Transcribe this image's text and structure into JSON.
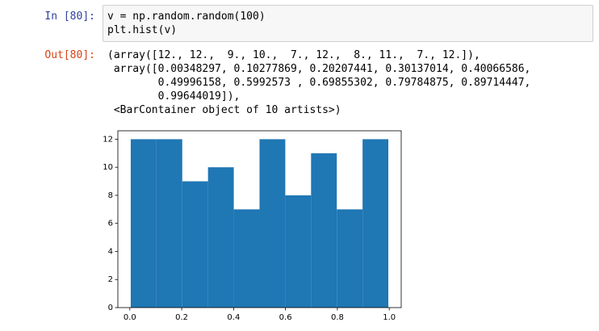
{
  "input_prompt": "In [80]:",
  "code_lines": [
    "v = np.random.random(100)",
    "plt.hist(v)"
  ],
  "output_prompt": "Out[80]:",
  "output_lines": [
    "(array([12., 12.,  9., 10.,  7., 12.,  8., 11.,  7., 12.]),",
    " array([0.00348297, 0.10277869, 0.20207441, 0.30137014, 0.40066586,",
    "        0.49996158, 0.5992573 , 0.69855302, 0.79784875, 0.89714447,",
    "        0.99644019]),",
    " <BarContainer object of 10 artists>)"
  ],
  "chart_data": {
    "type": "histogram",
    "bins": [
      0.00348297,
      0.10277869,
      0.20207441,
      0.30137014,
      0.40066586,
      0.49996158,
      0.5992573,
      0.69855302,
      0.79784875,
      0.89714447,
      0.99644019
    ],
    "values": [
      12,
      12,
      9,
      10,
      7,
      12,
      8,
      11,
      7,
      12
    ],
    "color": "#1f77b4",
    "xlim": [
      -0.0461,
      1.0461
    ],
    "xticks": [
      {
        "value": 0,
        "label": "0.0"
      },
      0.2,
      0.4,
      0.6,
      0.8,
      {
        "value": 1,
        "label": "1.0"
      }
    ],
    "ylim": [
      0,
      12.6
    ],
    "yticks": [
      0,
      2,
      4,
      6,
      8,
      10,
      12
    ]
  }
}
